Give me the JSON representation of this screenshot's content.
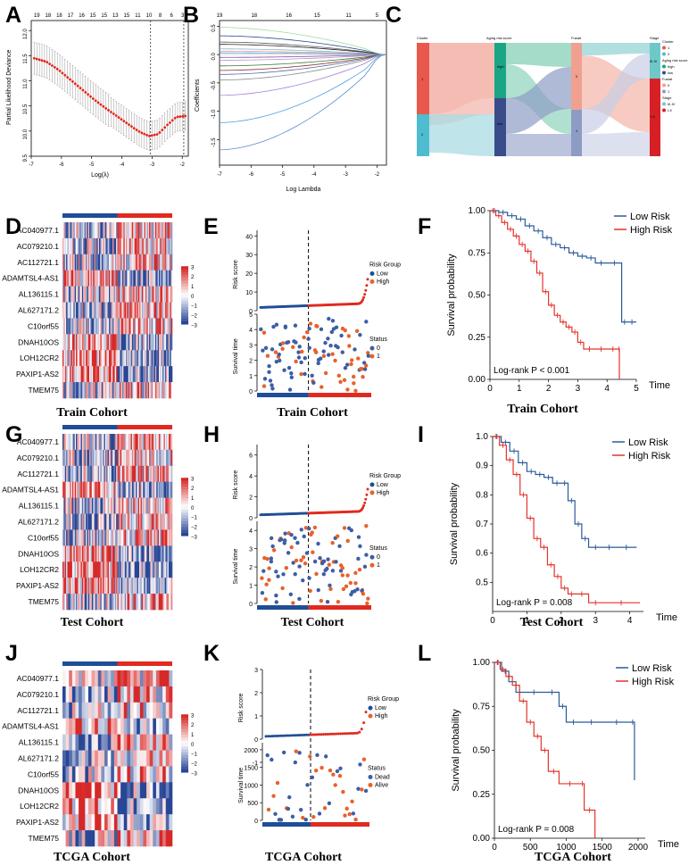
{
  "colors": {
    "low": "#1f4e96",
    "high": "#e02a1f",
    "red_line": "#e3342b",
    "blue_line": "#2b5a9a",
    "alive": "#e8612a",
    "dead": "#3c5ea6"
  },
  "panels": {
    "A": "A",
    "B": "B",
    "C": "C",
    "D": "D",
    "E": "E",
    "F": "F",
    "G": "G",
    "H": "H",
    "I": "I",
    "J": "J",
    "K": "K",
    "L": "L"
  },
  "cohorts": {
    "train": "Train Cohort",
    "test": "Test Cohort",
    "tcga": "TCGA Cohort"
  },
  "genes": [
    "AC040977.1",
    "AC079210.1",
    "AC112721.1",
    "ADAMTSL4-AS1",
    "AL136115.1",
    "AL627171.2",
    "C10orf55",
    "DNAH10OS",
    "LOH12CR2",
    "PAXIP1-AS2",
    "TMEM75"
  ],
  "heat_scale": [
    "3",
    "2",
    "1",
    "0",
    "−1",
    "−2",
    "−3"
  ],
  "labels": {
    "risk_score": "Risk score",
    "survival_time": "Survival time",
    "risk_group": "Risk Group",
    "low": "Low",
    "high": "High",
    "status": "Status",
    "s0": "0",
    "s1": "1",
    "dead": "Dead",
    "alive": "Alive",
    "survival_prob": "Survival probability",
    "time": "Time",
    "low_risk": "Low Risk",
    "high_risk": "High Risk",
    "pld": "Partial Likelihood Deviance",
    "log_lambda_a": "Log(λ)",
    "coefficients": "Coefficients",
    "log_lambda_b": "Log Lambda"
  },
  "sankey": {
    "axes": [
      "Cluster",
      "Aging risk score",
      "Fustat",
      "Stage"
    ],
    "nodes": {
      "c1": "1",
      "c2": "2",
      "high": "high",
      "low": "low",
      "f0": "0",
      "f1": "1",
      "s34": "III-IV",
      "s12": "I-II"
    },
    "legend": [
      "Cluster",
      "1",
      "2",
      "Aging risk score",
      "high",
      "low",
      "Fustat",
      "0",
      "1",
      "Stage",
      "III-IV",
      "I-II"
    ]
  },
  "chart_data": [
    {
      "type": "line",
      "panel": "A",
      "xlabel": "Log(λ)",
      "ylabel": "Partial Likelihood Deviance",
      "xlim": [
        -7,
        -1.8
      ],
      "ylim": [
        9.5,
        12.2
      ],
      "x_ticks": [
        "-7",
        "-6",
        "-5",
        "-4",
        "-3",
        "-2"
      ],
      "y_ticks": [
        "9.5",
        "10.0",
        "10.5",
        "11.0",
        "11.5",
        "12.0"
      ],
      "top_ticks": [
        "19",
        "18",
        "18",
        "17",
        "16",
        "15",
        "15",
        "13",
        "15",
        "11",
        "10",
        "8",
        "6",
        "3"
      ],
      "points_x": [
        -6.9,
        -6.5,
        -6.1,
        -5.7,
        -5.3,
        -4.9,
        -4.5,
        -4.1,
        -3.7,
        -3.4,
        -3.1,
        -2.8,
        -2.5,
        -2.2,
        -1.9
      ],
      "points_y": [
        11.45,
        11.38,
        11.22,
        11.02,
        10.82,
        10.62,
        10.44,
        10.27,
        10.1,
        9.98,
        9.9,
        9.94,
        10.12,
        10.28,
        10.3
      ],
      "vlines": [
        -3.05,
        -1.95
      ]
    },
    {
      "type": "line",
      "panel": "B",
      "xlabel": "Log Lambda",
      "ylabel": "Coefficients",
      "xlim": [
        -7,
        -1.7
      ],
      "ylim": [
        -1.95,
        0.6
      ],
      "x_ticks": [
        "-7",
        "-6",
        "-5",
        "-4",
        "-3",
        "-2"
      ],
      "y_ticks": [
        "-1.5",
        "-1.0",
        "-0.5",
        "0.0",
        "0.5"
      ],
      "top_ticks": [
        "19",
        "18",
        "16",
        "15",
        "11",
        "5"
      ]
    },
    {
      "type": "heatmap",
      "panel": "D",
      "groups": [
        "Low",
        "High"
      ]
    },
    {
      "type": "scatter",
      "panel": "E",
      "risk_ylim": [
        0,
        43
      ],
      "risk_ticks": [
        "0",
        "10",
        "20",
        "30",
        "40"
      ],
      "time_ylim": [
        0,
        5
      ],
      "time_ticks": [
        "0",
        "1",
        "2",
        "3",
        "4",
        "5"
      ]
    },
    {
      "type": "line",
      "panel": "F",
      "title": "Train Cohort",
      "xlabel": "Time",
      "ylabel": "Survival probability",
      "xlim": [
        0,
        5
      ],
      "ylim": [
        0,
        1
      ],
      "x_ticks": [
        "0",
        "1",
        "2",
        "3",
        "4",
        "5"
      ],
      "y_ticks": [
        "0.00",
        "0.25",
        "0.50",
        "0.75",
        "1.00"
      ],
      "annotation": "Log-rank P < 0.001",
      "series": [
        {
          "name": "Low Risk",
          "x": [
            0,
            0.3,
            0.6,
            0.9,
            1.2,
            1.5,
            1.8,
            2.1,
            2.4,
            2.7,
            3.0,
            3.3,
            3.6,
            4.0,
            4.5,
            4.7,
            5.0
          ],
          "y": [
            1.0,
            0.99,
            0.97,
            0.95,
            0.91,
            0.88,
            0.84,
            0.8,
            0.78,
            0.75,
            0.73,
            0.72,
            0.69,
            0.69,
            0.34,
            0.34,
            0.34
          ]
        },
        {
          "name": "High Risk",
          "x": [
            0,
            0.2,
            0.4,
            0.6,
            0.8,
            1.0,
            1.2,
            1.4,
            1.6,
            1.8,
            2.0,
            2.2,
            2.4,
            2.6,
            2.8,
            3.0,
            3.2,
            3.6,
            4.0,
            4.4,
            4.42
          ],
          "y": [
            1.0,
            0.97,
            0.93,
            0.89,
            0.85,
            0.8,
            0.76,
            0.7,
            0.63,
            0.52,
            0.44,
            0.38,
            0.34,
            0.31,
            0.28,
            0.22,
            0.18,
            0.18,
            0.18,
            0.18,
            0.0
          ]
        }
      ]
    },
    {
      "type": "line",
      "panel": "I",
      "title": "Test Cohort",
      "xlabel": "Time",
      "ylabel": "Survival probability",
      "xlim": [
        0,
        4.4
      ],
      "ylim": [
        0.4,
        1.0
      ],
      "x_ticks": [
        "0",
        "1",
        "2",
        "3",
        "4"
      ],
      "y_ticks": [
        "0.5",
        "0.6",
        "0.7",
        "0.8",
        "0.9",
        "1.0"
      ],
      "annotation": "Log-rank P = 0.008",
      "series": [
        {
          "name": "Low Risk",
          "x": [
            0,
            0.25,
            0.5,
            0.75,
            1.0,
            1.25,
            1.5,
            1.75,
            2.0,
            2.2,
            2.4,
            2.6,
            2.8,
            3.2,
            3.6,
            4.2
          ],
          "y": [
            1.0,
            0.98,
            0.95,
            0.91,
            0.88,
            0.87,
            0.86,
            0.84,
            0.84,
            0.78,
            0.7,
            0.65,
            0.62,
            0.62,
            0.62,
            0.62
          ]
        },
        {
          "name": "High Risk",
          "x": [
            0,
            0.2,
            0.4,
            0.6,
            0.8,
            1.0,
            1.2,
            1.4,
            1.6,
            1.8,
            2.0,
            2.2,
            2.4,
            2.8,
            3.2,
            4.3
          ],
          "y": [
            1.0,
            0.97,
            0.92,
            0.87,
            0.8,
            0.72,
            0.65,
            0.62,
            0.56,
            0.52,
            0.48,
            0.46,
            0.46,
            0.43,
            0.43,
            0.43
          ]
        }
      ]
    },
    {
      "type": "line",
      "panel": "L",
      "title": "TCGA Cohort",
      "xlabel": "Time",
      "ylabel": "Survival probability",
      "xlim": [
        0,
        2100
      ],
      "ylim": [
        0,
        1
      ],
      "x_ticks": [
        "0",
        "500",
        "1000",
        "1500",
        "2000"
      ],
      "y_ticks": [
        "0.00",
        "0.25",
        "0.50",
        "0.75",
        "1.00"
      ],
      "annotation": "Log-rank P = 0.008",
      "series": [
        {
          "name": "Low Risk",
          "x": [
            0,
            100,
            200,
            300,
            400,
            700,
            900,
            1000,
            1200,
            1500,
            1900,
            1950
          ],
          "y": [
            1.0,
            0.95,
            0.89,
            0.83,
            0.83,
            0.83,
            0.75,
            0.66,
            0.66,
            0.66,
            0.66,
            0.33
          ]
        },
        {
          "name": "High Risk",
          "x": [
            0,
            80,
            160,
            250,
            350,
            450,
            550,
            650,
            750,
            900,
            1200,
            1250,
            1400
          ],
          "y": [
            1.0,
            0.96,
            0.92,
            0.87,
            0.78,
            0.66,
            0.58,
            0.5,
            0.38,
            0.31,
            0.31,
            0.16,
            0.0
          ]
        }
      ]
    }
  ]
}
